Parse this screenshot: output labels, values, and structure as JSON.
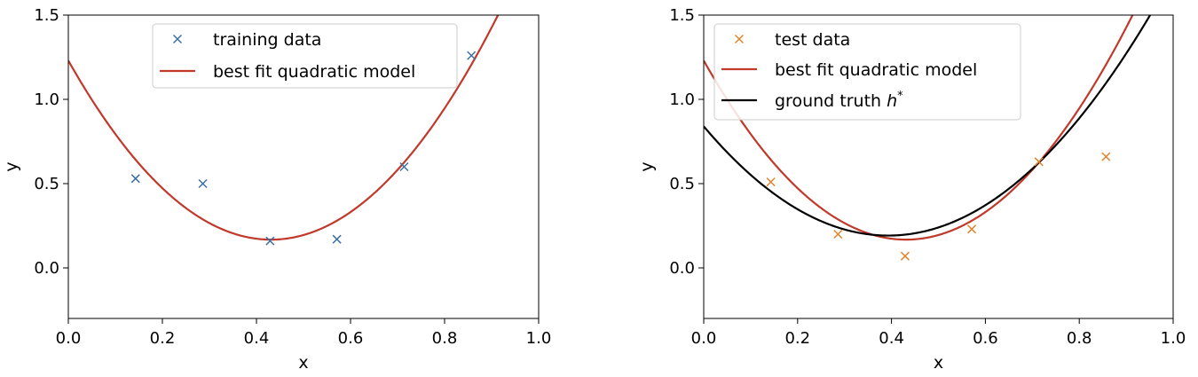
{
  "chart_data": [
    {
      "type": "scatter",
      "xlabel": "x",
      "ylabel": "y",
      "xlim": [
        0.0,
        1.0
      ],
      "ylim": [
        -0.3,
        1.5
      ],
      "xticks": [
        0.0,
        0.2,
        0.4,
        0.6,
        0.8,
        1.0
      ],
      "xtick_labels": [
        "0.0",
        "0.2",
        "0.4",
        "0.6",
        "0.8",
        "1.0"
      ],
      "yticks": [
        0.0,
        0.5,
        1.0,
        1.5
      ],
      "ytick_labels": [
        "0.0",
        "0.5",
        "1.0",
        "1.5"
      ],
      "legend_position": "top-center",
      "points": {
        "name": "training data",
        "color": "#3a6fa8",
        "marker": "x",
        "x": [
          0.143,
          0.286,
          0.429,
          0.571,
          0.714,
          0.857
        ],
        "y": [
          0.53,
          0.5,
          0.16,
          0.17,
          0.6,
          1.26
        ]
      },
      "curves": [
        {
          "name": "best fit quadratic model",
          "color": "#c0392b",
          "coefficients": [
            1.23,
            -4.93,
            5.72
          ]
        }
      ]
    },
    {
      "type": "scatter",
      "xlabel": "x",
      "ylabel": "y",
      "xlim": [
        0.0,
        1.0
      ],
      "ylim": [
        -0.3,
        1.5
      ],
      "xticks": [
        0.0,
        0.2,
        0.4,
        0.6,
        0.8,
        1.0
      ],
      "xtick_labels": [
        "0.0",
        "0.2",
        "0.4",
        "0.6",
        "0.8",
        "1.0"
      ],
      "yticks": [
        0.0,
        0.5,
        1.0,
        1.5
      ],
      "ytick_labels": [
        "0.0",
        "0.5",
        "1.0",
        "1.5"
      ],
      "legend_position": "top-left",
      "points": {
        "name": "test data",
        "color": "#e0832e",
        "marker": "x",
        "x": [
          0.143,
          0.286,
          0.429,
          0.571,
          0.714,
          0.857
        ],
        "y": [
          0.51,
          0.2,
          0.07,
          0.23,
          0.63,
          0.66
        ]
      },
      "curves": [
        {
          "name": "best fit quadratic model",
          "color": "#c0392b",
          "coefficients": [
            1.23,
            -4.93,
            5.72
          ]
        },
        {
          "name": "ground truth h*",
          "name_main": "ground truth h",
          "name_sup": "*",
          "color": "#000000",
          "coefficients": [
            0.84,
            -3.3,
            4.2
          ]
        }
      ]
    }
  ]
}
